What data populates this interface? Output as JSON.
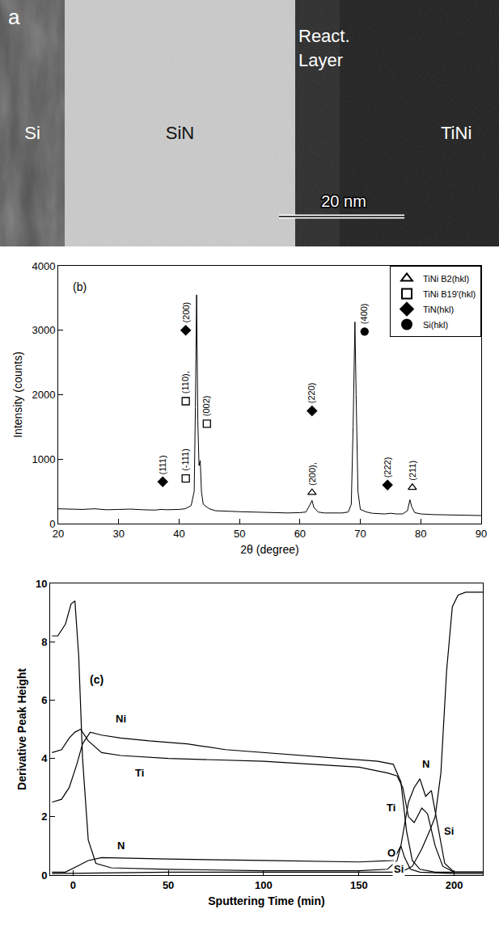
{
  "image_panel": {
    "label": "a",
    "regions": [
      {
        "name": "Si"
      },
      {
        "name": "SiN"
      },
      {
        "lines": [
          "React.",
          "Layer"
        ]
      },
      {
        "name": "TiNi"
      }
    ],
    "scale_bar": "20 nm"
  },
  "chart_data": [
    {
      "type": "line",
      "panel_label": "(b)",
      "x_label": "2θ (degree)",
      "y_label": "Intensity (counts)",
      "xlim": [
        20,
        90
      ],
      "xticks": [
        20,
        30,
        40,
        50,
        60,
        70,
        80,
        90
      ],
      "ylim": [
        0,
        4000
      ],
      "yticks": [
        0,
        1000,
        2000,
        3000,
        4000
      ],
      "legend": "top right",
      "color": "#000000",
      "x": [
        20,
        22,
        24,
        26,
        28,
        30,
        32,
        34,
        36,
        37,
        38,
        40,
        41,
        42,
        42.5,
        42.7,
        42.9,
        43.1,
        43.3,
        43.5,
        43.7,
        44,
        45,
        46,
        48,
        50,
        52,
        54,
        56,
        58,
        60,
        61,
        61.7,
        62,
        62.3,
        63,
        64,
        66,
        67,
        68,
        68.5,
        68.8,
        69.1,
        69.3,
        69.6,
        70,
        71,
        72,
        74,
        75,
        76,
        77,
        77.8,
        78.2,
        78.5,
        79,
        80,
        82,
        84,
        86,
        88,
        90
      ],
      "values": [
        230,
        225,
        220,
        230,
        215,
        220,
        225,
        215,
        210,
        220,
        215,
        220,
        230,
        280,
        500,
        1800,
        3550,
        1600,
        900,
        980,
        500,
        300,
        230,
        200,
        190,
        185,
        180,
        175,
        170,
        165,
        170,
        180,
        300,
        360,
        250,
        180,
        165,
        160,
        165,
        180,
        300,
        1500,
        3130,
        2000,
        500,
        220,
        180,
        160,
        150,
        160,
        150,
        150,
        200,
        370,
        260,
        170,
        150,
        140,
        135,
        130,
        130,
        125
      ],
      "peak_markers": [
        {
          "name": "TiNi B2(hkl)",
          "marker": "triangle-up-open",
          "color": "#000000",
          "x": [
            62.0,
            78.6
          ],
          "y": [
            480,
            560
          ],
          "labels": [
            "(200),",
            "(211)"
          ]
        },
        {
          "name": "TiNi B19'(hkl)",
          "marker": "square-open",
          "color": "#000000",
          "x": [
            41.1,
            41.1,
            44.6
          ],
          "y": [
            700,
            1900,
            1550
          ],
          "labels": [
            "(-111)",
            "(110),",
            "(002)"
          ]
        },
        {
          "name": "TiN(hkl)",
          "marker": "diamond",
          "color": "#000000",
          "x": [
            37.3,
            41.1,
            62.0,
            74.5
          ],
          "y": [
            650,
            3000,
            1750,
            600
          ],
          "labels": [
            "(111)",
            "(200)",
            "(220)",
            "(222)"
          ]
        },
        {
          "name": "Si(hkl)",
          "marker": "circle",
          "color": "#000000",
          "x": [
            70.7
          ],
          "y": [
            2980
          ],
          "labels": [
            "(400)"
          ]
        }
      ]
    },
    {
      "type": "line",
      "panel_label": "(c)",
      "x_label": "Sputtering Time (min)",
      "y_label": "Derivative Peak Height",
      "xlim": [
        -12,
        215
      ],
      "xticks": [
        0,
        50,
        100,
        150,
        200
      ],
      "ylim": [
        0,
        10
      ],
      "yticks": [
        0,
        2,
        4,
        6,
        8,
        10
      ],
      "color": "#000000",
      "series": [
        {
          "name": "O",
          "x": [
            -11,
            -8,
            -4,
            -1,
            1,
            3,
            5,
            8,
            12,
            20,
            50,
            100,
            150,
            165,
            170,
            172,
            174,
            177,
            182,
            200,
            215
          ],
          "values": [
            8.2,
            8.2,
            8.6,
            9.3,
            9.4,
            7.5,
            4,
            1.2,
            0.4,
            0.25,
            0.2,
            0.15,
            0.15,
            0.2,
            0.5,
            1.0,
            0.6,
            0.2,
            0.1,
            0.05,
            0.05
          ]
        },
        {
          "name": "Ni",
          "x": [
            -11,
            -6,
            -2,
            2,
            5,
            9,
            15,
            25,
            40,
            60,
            80,
            100,
            120,
            140,
            160,
            168,
            172,
            175,
            178,
            182,
            190,
            215
          ],
          "values": [
            2.5,
            2.6,
            3.0,
            3.8,
            4.5,
            4.9,
            4.8,
            4.7,
            4.6,
            4.5,
            4.3,
            4.2,
            4.1,
            4.0,
            3.9,
            3.8,
            3.2,
            1.5,
            0.5,
            0.2,
            0.1,
            0.1
          ]
        },
        {
          "name": "Ti",
          "x": [
            -11,
            -6,
            -2,
            1,
            4,
            8,
            15,
            25,
            50,
            100,
            150,
            165,
            170,
            173,
            176,
            179,
            183,
            186,
            190,
            194,
            200,
            215
          ],
          "values": [
            4.2,
            4.3,
            4.7,
            4.9,
            5.0,
            4.6,
            4.2,
            4.1,
            4.0,
            3.9,
            3.7,
            3.5,
            3.4,
            3.0,
            2.0,
            1.8,
            2.3,
            2.1,
            1.0,
            0.3,
            0.1,
            0.1
          ]
        },
        {
          "name": "N",
          "x": [
            -11,
            -4,
            2,
            8,
            15,
            50,
            100,
            150,
            168,
            172,
            176,
            179,
            182,
            185,
            188,
            191,
            195,
            200,
            215
          ],
          "values": [
            0.1,
            0.1,
            0.3,
            0.5,
            0.6,
            0.55,
            0.5,
            0.45,
            0.5,
            1.0,
            2.5,
            3.0,
            3.3,
            2.7,
            2.9,
            1.8,
            0.4,
            0.1,
            0.1
          ]
        },
        {
          "name": "Si",
          "x": [
            -11,
            50,
            100,
            150,
            172,
            178,
            183,
            187,
            190,
            193,
            196,
            199,
            202,
            206,
            215
          ],
          "values": [
            0.05,
            0.1,
            0.1,
            0.1,
            0.1,
            0.3,
            0.9,
            1.5,
            2.0,
            3.5,
            7,
            9.2,
            9.6,
            9.7,
            9.7
          ]
        }
      ],
      "annotations": [
        {
          "text": "Ni",
          "x": 25,
          "y": 5.35
        },
        {
          "text": "Ti",
          "x": 35,
          "y": 3.5
        },
        {
          "text": "N",
          "x": 25,
          "y": 1.0
        },
        {
          "text": "O",
          "x": 167,
          "y": 0.75
        },
        {
          "text": "Si",
          "x": 171,
          "y": 0.2
        },
        {
          "text": "Ti",
          "x": 167,
          "y": 2.3
        },
        {
          "text": "N",
          "x": 185,
          "y": 3.8
        },
        {
          "text": "Si",
          "x": 197,
          "y": 1.5
        }
      ]
    }
  ]
}
